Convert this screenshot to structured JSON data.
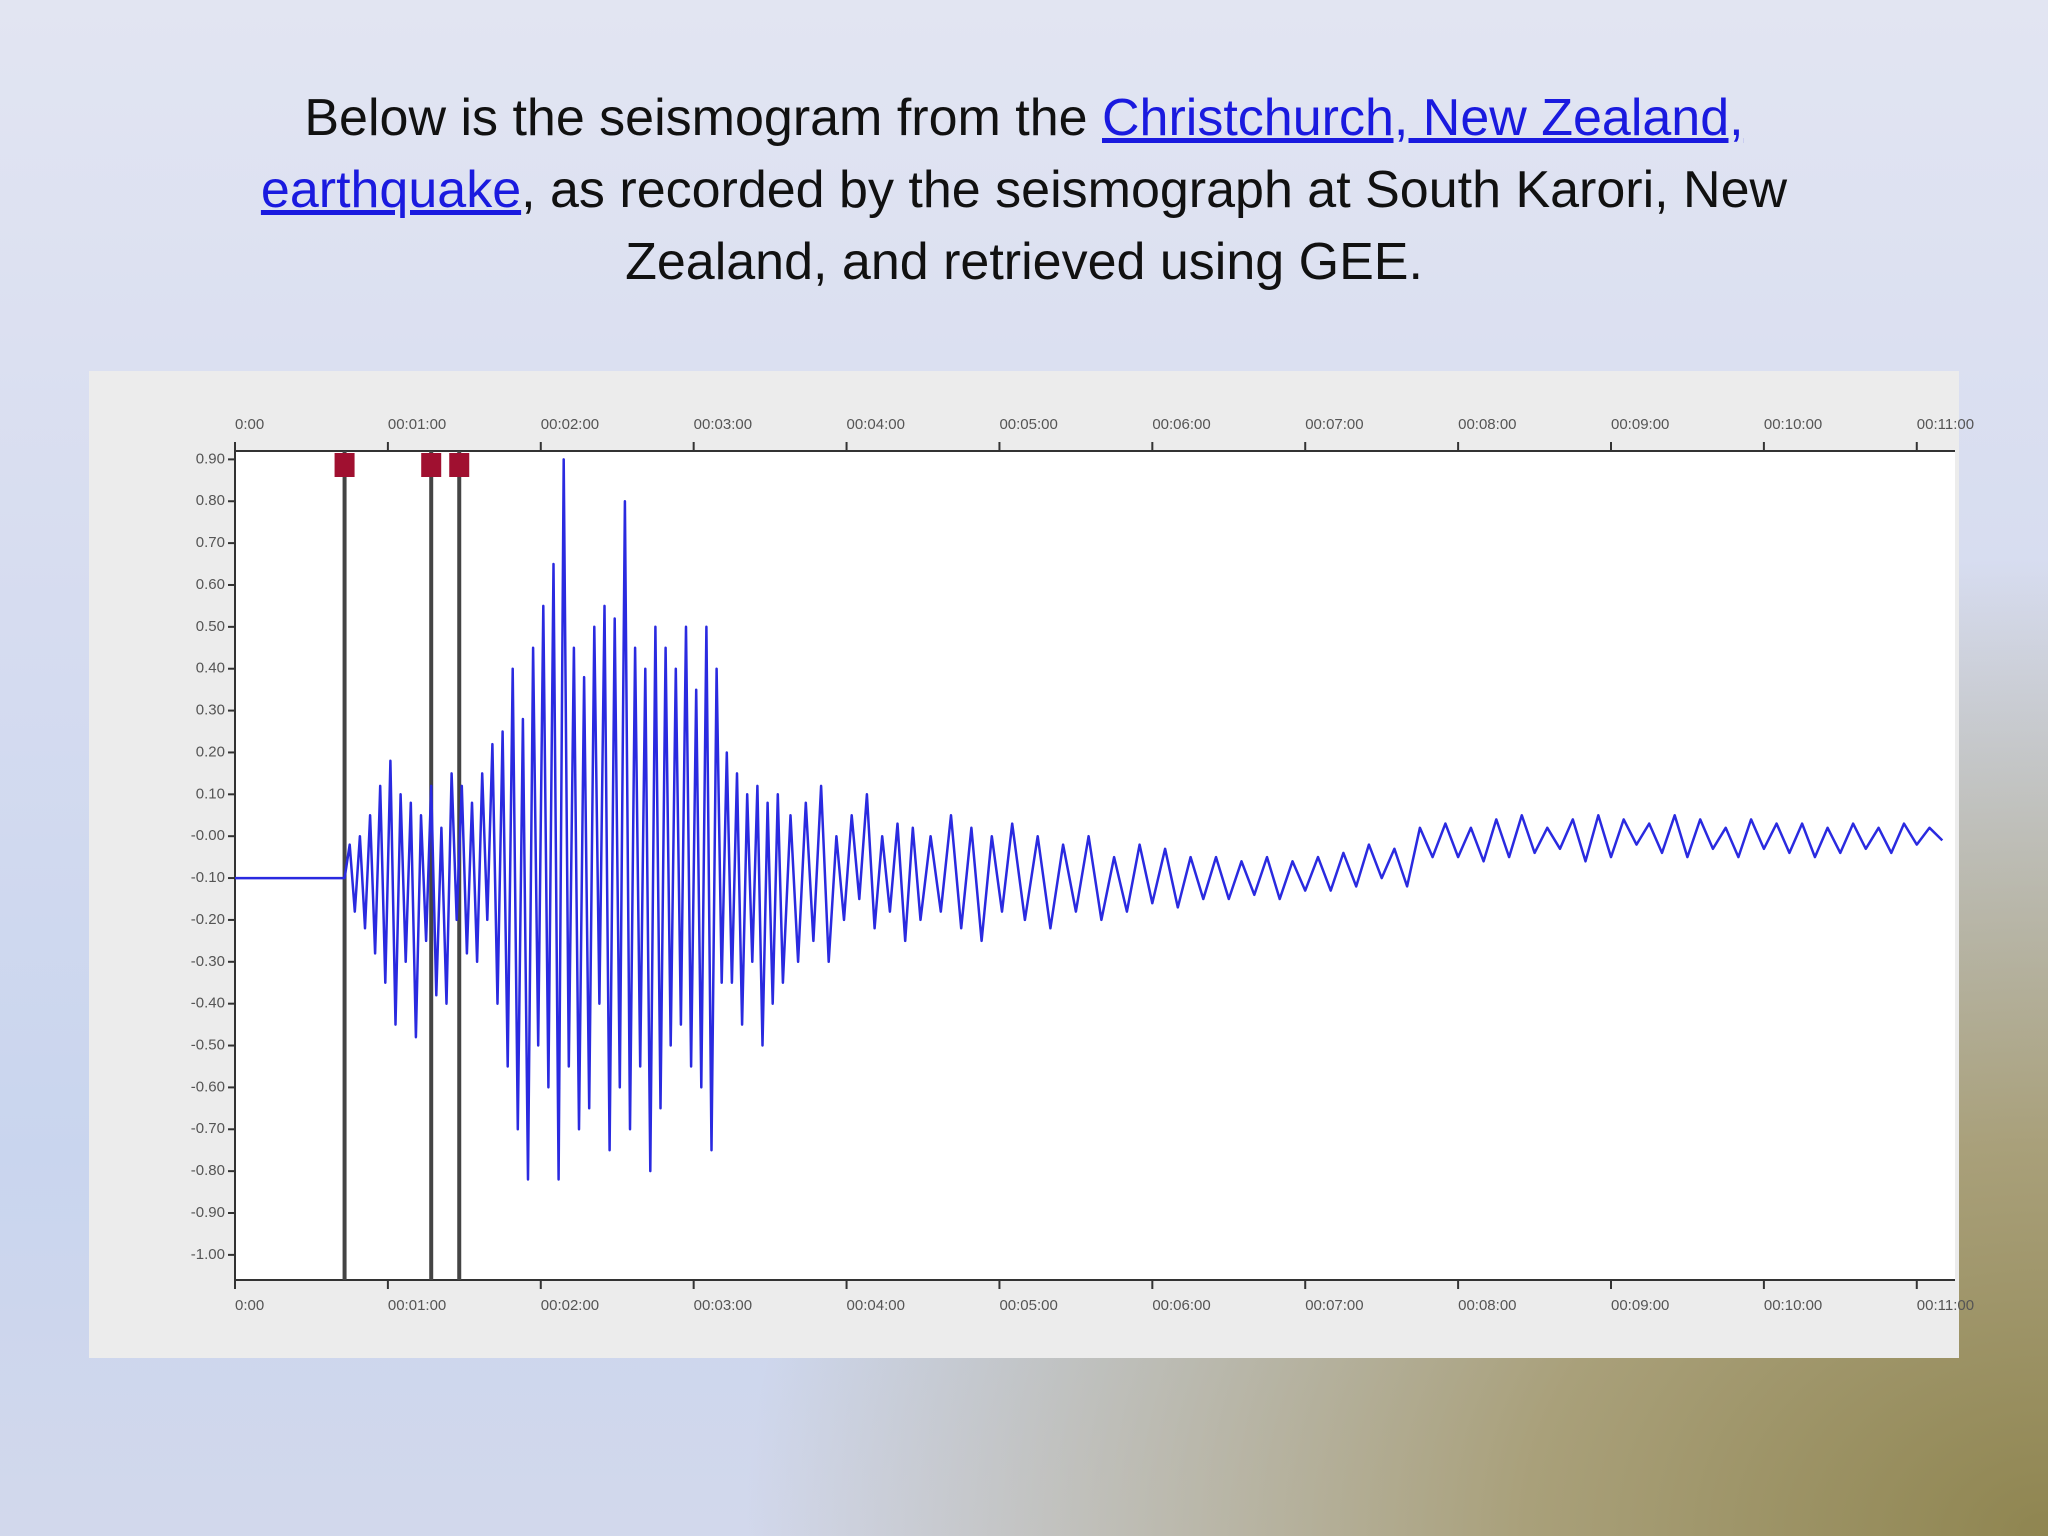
{
  "text": {
    "before": "Below is the seismogram from the ",
    "link": "Christchurch, New Zealand, earthquake",
    "after": ", as recorded by the seismograph at South Karori, New Zealand, and retrieved using GEE."
  },
  "chart_data": {
    "type": "line",
    "x": [
      0,
      43,
      45,
      47,
      49,
      51,
      53,
      55,
      57,
      59,
      61,
      63,
      65,
      67,
      69,
      71,
      73,
      75,
      77,
      79,
      81,
      83,
      85,
      87,
      89,
      91,
      93,
      95,
      97,
      99,
      101,
      103,
      105,
      107,
      109,
      111,
      113,
      115,
      117,
      119,
      121,
      123,
      125,
      127,
      129,
      131,
      133,
      135,
      137,
      139,
      141,
      143,
      145,
      147,
      149,
      151,
      153,
      155,
      157,
      159,
      161,
      163,
      165,
      167,
      169,
      171,
      173,
      175,
      177,
      179,
      181,
      183,
      185,
      187,
      189,
      191,
      193,
      195,
      197,
      199,
      201,
      203,
      205,
      207,
      209,
      211,
      213,
      215,
      218,
      221,
      224,
      227,
      230,
      233,
      236,
      239,
      242,
      245,
      248,
      251,
      254,
      257,
      260,
      263,
      266,
      269,
      273,
      277,
      281,
      285,
      289,
      293,
      297,
      301,
      305,
      310,
      315,
      320,
      325,
      330,
      335,
      340,
      345,
      350,
      355,
      360,
      365,
      370,
      375,
      380,
      385,
      390,
      395,
      400,
      405,
      410,
      415,
      420,
      425,
      430,
      435,
      440,
      445,
      450,
      455,
      460,
      465,
      470,
      475,
      480,
      485,
      490,
      495,
      500,
      505,
      510,
      515,
      520,
      525,
      530,
      535,
      540,
      545,
      550,
      555,
      560,
      565,
      570,
      575,
      580,
      585,
      590,
      595,
      600,
      605,
      610,
      615,
      620,
      625,
      630,
      635,
      640,
      645,
      650,
      655,
      660,
      665,
      670
    ],
    "series": [
      {
        "color": "#2a2ae0",
        "values": [
          -0.1,
          -0.1,
          -0.02,
          -0.18,
          0.0,
          -0.22,
          0.05,
          -0.28,
          0.12,
          -0.35,
          0.18,
          -0.45,
          0.1,
          -0.3,
          0.08,
          -0.48,
          0.05,
          -0.25,
          0.12,
          -0.38,
          0.02,
          -0.4,
          0.15,
          -0.2,
          0.12,
          -0.28,
          0.08,
          -0.3,
          0.15,
          -0.2,
          0.22,
          -0.4,
          0.25,
          -0.55,
          0.4,
          -0.7,
          0.28,
          -0.82,
          0.45,
          -0.5,
          0.55,
          -0.6,
          0.65,
          -0.82,
          0.9,
          -0.55,
          0.45,
          -0.7,
          0.38,
          -0.65,
          0.5,
          -0.4,
          0.55,
          -0.75,
          0.52,
          -0.6,
          0.8,
          -0.7,
          0.45,
          -0.55,
          0.4,
          -0.8,
          0.5,
          -0.65,
          0.45,
          -0.5,
          0.4,
          -0.45,
          0.5,
          -0.55,
          0.35,
          -0.6,
          0.5,
          -0.75,
          0.4,
          -0.35,
          0.2,
          -0.35,
          0.15,
          -0.45,
          0.1,
          -0.3,
          0.12,
          -0.5,
          0.08,
          -0.4,
          0.1,
          -0.35,
          0.05,
          -0.3,
          0.08,
          -0.25,
          0.12,
          -0.3,
          0.0,
          -0.2,
          0.05,
          -0.15,
          0.1,
          -0.22,
          0.0,
          -0.18,
          0.03,
          -0.25,
          0.02,
          -0.2,
          0.0,
          -0.18,
          0.05,
          -0.22,
          0.02,
          -0.25,
          0.0,
          -0.18,
          0.03,
          -0.2,
          0.0,
          -0.22,
          -0.02,
          -0.18,
          0.0,
          -0.2,
          -0.05,
          -0.18,
          -0.02,
          -0.16,
          -0.03,
          -0.17,
          -0.05,
          -0.15,
          -0.05,
          -0.15,
          -0.06,
          -0.14,
          -0.05,
          -0.15,
          -0.06,
          -0.13,
          -0.05,
          -0.13,
          -0.04,
          -0.12,
          -0.02,
          -0.1,
          -0.03,
          -0.12,
          0.02,
          -0.05,
          0.03,
          -0.05,
          0.02,
          -0.06,
          0.04,
          -0.05,
          0.05,
          -0.04,
          0.02,
          -0.03,
          0.04,
          -0.06,
          0.05,
          -0.05,
          0.04,
          -0.02,
          0.03,
          -0.04,
          0.05,
          -0.05,
          0.04,
          -0.03,
          0.02,
          -0.05,
          0.04,
          -0.03,
          0.03,
          -0.04,
          0.03,
          -0.05,
          0.02,
          -0.04,
          0.03,
          -0.03,
          0.02,
          -0.04,
          0.03,
          -0.02,
          0.02,
          -0.01
        ]
      }
    ],
    "markers": [
      43,
      77,
      88
    ],
    "xlim": [
      0,
      675
    ],
    "xticks": [
      {
        "value": 0,
        "label": "0:00"
      },
      {
        "value": 60,
        "label": "00:01:00"
      },
      {
        "value": 120,
        "label": "00:02:00"
      },
      {
        "value": 180,
        "label": "00:03:00"
      },
      {
        "value": 240,
        "label": "00:04:00"
      },
      {
        "value": 300,
        "label": "00:05:00"
      },
      {
        "value": 360,
        "label": "00:06:00"
      },
      {
        "value": 420,
        "label": "00:07:00"
      },
      {
        "value": 480,
        "label": "00:08:00"
      },
      {
        "value": 540,
        "label": "00:09:00"
      },
      {
        "value": 600,
        "label": "00:10:00"
      },
      {
        "value": 660,
        "label": "00:11:00"
      }
    ],
    "ylim": [
      -1.06,
      0.92
    ],
    "yticks": [
      {
        "value": 0.9,
        "label": "0.90"
      },
      {
        "value": 0.8,
        "label": "0.80"
      },
      {
        "value": 0.7,
        "label": "0.70"
      },
      {
        "value": 0.6,
        "label": "0.60"
      },
      {
        "value": 0.5,
        "label": "0.50"
      },
      {
        "value": 0.4,
        "label": "0.40"
      },
      {
        "value": 0.3,
        "label": "0.30"
      },
      {
        "value": 0.2,
        "label": "0.20"
      },
      {
        "value": 0.1,
        "label": "0.10"
      },
      {
        "value": 0,
        "label": "-0.00"
      },
      {
        "value": -0.1,
        "label": "-0.10"
      },
      {
        "value": -0.2,
        "label": "-0.20"
      },
      {
        "value": -0.3,
        "label": "-0.30"
      },
      {
        "value": -0.4,
        "label": "-0.40"
      },
      {
        "value": -0.5,
        "label": "-0.50"
      },
      {
        "value": -0.6,
        "label": "-0.60"
      },
      {
        "value": -0.7,
        "label": "-0.70"
      },
      {
        "value": -0.8,
        "label": "-0.80"
      },
      {
        "value": -0.9,
        "label": "-0.90"
      },
      {
        "value": -1.0,
        "label": "-1.00"
      }
    ]
  }
}
